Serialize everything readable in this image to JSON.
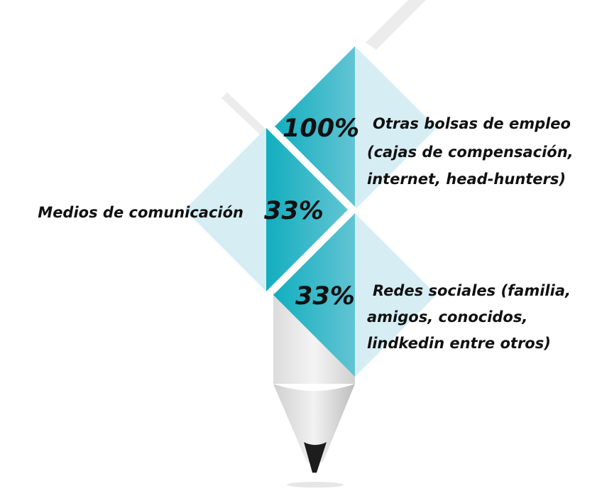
{
  "items": [
    {
      "percent": "100%",
      "label_lines": [
        "Otras bolsas de empleo",
        "(cajas de compensación,",
        "internet, head-hunters)"
      ]
    },
    {
      "percent": "33%",
      "label_lines": [
        "Medios de comunicación"
      ]
    },
    {
      "percent": "33%",
      "label_lines": [
        "Redes sociales (familia,",
        "amigos, conocidos,",
        "lindkedin entre otros)"
      ]
    }
  ]
}
